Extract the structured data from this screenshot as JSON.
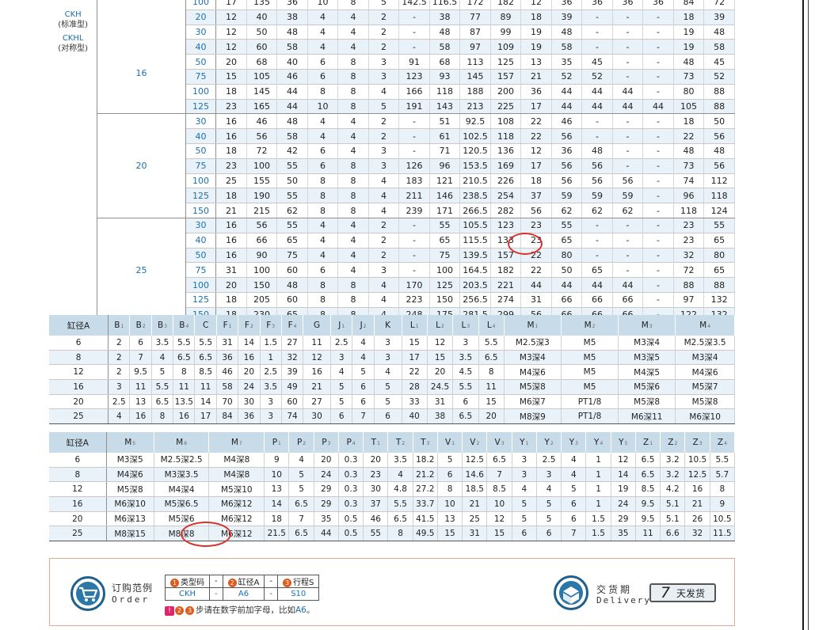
{
  "top_table": {
    "series_labels": [
      "CKH",
      "(标准型)",
      "CKHL",
      "(对称型)"
    ],
    "groups": [
      {
        "bore": "16",
        "rows": [
          [
            "100",
            "17",
            "135",
            "36",
            "10",
            "8",
            "5",
            "142.5",
            "116.5",
            "172",
            "182",
            "12",
            "36",
            "36",
            "36",
            "36",
            "84",
            "72"
          ],
          [
            "20",
            "12",
            "40",
            "38",
            "4",
            "4",
            "2",
            "-",
            "38",
            "77",
            "89",
            "18",
            "39",
            "-",
            "-",
            "-",
            "18",
            "39"
          ],
          [
            "30",
            "12",
            "50",
            "48",
            "4",
            "4",
            "2",
            "-",
            "48",
            "87",
            "99",
            "19",
            "48",
            "-",
            "-",
            "-",
            "19",
            "48"
          ],
          [
            "40",
            "12",
            "60",
            "58",
            "4",
            "4",
            "2",
            "-",
            "58",
            "97",
            "109",
            "19",
            "58",
            "-",
            "-",
            "-",
            "19",
            "58"
          ],
          [
            "50",
            "20",
            "68",
            "40",
            "6",
            "8",
            "3",
            "91",
            "68",
            "113",
            "125",
            "13",
            "35",
            "45",
            "-",
            "-",
            "48",
            "45"
          ],
          [
            "75",
            "15",
            "105",
            "46",
            "6",
            "8",
            "3",
            "123",
            "93",
            "145",
            "157",
            "21",
            "52",
            "52",
            "-",
            "-",
            "73",
            "52"
          ],
          [
            "100",
            "18",
            "145",
            "44",
            "8",
            "8",
            "4",
            "166",
            "118",
            "188",
            "200",
            "36",
            "44",
            "44",
            "44",
            "-",
            "80",
            "88"
          ],
          [
            "125",
            "23",
            "165",
            "44",
            "10",
            "8",
            "5",
            "191",
            "143",
            "213",
            "225",
            "17",
            "44",
            "44",
            "44",
            "44",
            "105",
            "88"
          ]
        ]
      },
      {
        "bore": "20",
        "rows": [
          [
            "30",
            "16",
            "46",
            "48",
            "4",
            "4",
            "2",
            "-",
            "51",
            "92.5",
            "108",
            "22",
            "46",
            "-",
            "-",
            "-",
            "18",
            "50"
          ],
          [
            "40",
            "16",
            "56",
            "58",
            "4",
            "4",
            "2",
            "-",
            "61",
            "102.5",
            "118",
            "22",
            "56",
            "-",
            "-",
            "-",
            "22",
            "56"
          ],
          [
            "50",
            "18",
            "72",
            "42",
            "6",
            "4",
            "3",
            "-",
            "71",
            "120.5",
            "136",
            "12",
            "36",
            "48",
            "-",
            "-",
            "48",
            "48"
          ],
          [
            "75",
            "23",
            "100",
            "55",
            "6",
            "8",
            "3",
            "126",
            "96",
            "153.5",
            "169",
            "17",
            "56",
            "56",
            "-",
            "-",
            "73",
            "56"
          ],
          [
            "100",
            "25",
            "155",
            "50",
            "8",
            "8",
            "4",
            "183",
            "121",
            "210.5",
            "226",
            "18",
            "56",
            "56",
            "56",
            "-",
            "74",
            "112"
          ],
          [
            "125",
            "18",
            "190",
            "55",
            "8",
            "8",
            "4",
            "211",
            "146",
            "238.5",
            "254",
            "37",
            "59",
            "59",
            "59",
            "-",
            "96",
            "118"
          ],
          [
            "150",
            "21",
            "215",
            "62",
            "8",
            "8",
            "4",
            "239",
            "171",
            "266.5",
            "282",
            "56",
            "62",
            "62",
            "62",
            "-",
            "118",
            "124"
          ]
        ]
      },
      {
        "bore": "25",
        "rows": [
          [
            "30",
            "16",
            "56",
            "55",
            "4",
            "4",
            "2",
            "-",
            "55",
            "105.5",
            "123",
            "23",
            "55",
            "-",
            "-",
            "-",
            "23",
            "55"
          ],
          [
            "40",
            "16",
            "66",
            "65",
            "4",
            "4",
            "2",
            "-",
            "65",
            "115.5",
            "133",
            "23",
            "65",
            "-",
            "-",
            "-",
            "23",
            "65"
          ],
          [
            "50",
            "16",
            "90",
            "75",
            "4",
            "4",
            "2",
            "-",
            "75",
            "139.5",
            "157",
            "22",
            "80",
            "-",
            "-",
            "-",
            "32",
            "80"
          ],
          [
            "75",
            "31",
            "100",
            "60",
            "6",
            "4",
            "3",
            "-",
            "100",
            "164.5",
            "182",
            "22",
            "50",
            "65",
            "-",
            "-",
            "72",
            "65"
          ],
          [
            "100",
            "20",
            "150",
            "48",
            "8",
            "8",
            "4",
            "170",
            "125",
            "203.5",
            "221",
            "44",
            "44",
            "44",
            "44",
            "-",
            "88",
            "88"
          ],
          [
            "125",
            "18",
            "205",
            "60",
            "8",
            "8",
            "4",
            "223",
            "150",
            "256.5",
            "274",
            "31",
            "66",
            "66",
            "66",
            "-",
            "97",
            "132"
          ],
          [
            "150",
            "18",
            "230",
            "65",
            "8",
            "8",
            "4",
            "248",
            "175",
            "281.5",
            "299",
            "56",
            "66",
            "66",
            "66",
            "-",
            "122",
            "132"
          ]
        ]
      }
    ]
  },
  "spec1": {
    "headers": [
      [
        "缸径A",
        ""
      ],
      [
        "B",
        "1"
      ],
      [
        "B",
        "2"
      ],
      [
        "B",
        "3"
      ],
      [
        "B",
        "4"
      ],
      [
        "C",
        ""
      ],
      [
        "F",
        "1"
      ],
      [
        "F",
        "2"
      ],
      [
        "F",
        "3"
      ],
      [
        "F",
        "4"
      ],
      [
        "G",
        ""
      ],
      [
        "J",
        "1"
      ],
      [
        "J",
        "2"
      ],
      [
        "K",
        ""
      ],
      [
        "L",
        "1"
      ],
      [
        "L",
        "2"
      ],
      [
        "L",
        "3"
      ],
      [
        "L",
        "4"
      ],
      [
        "M",
        "1"
      ],
      [
        "M",
        "2"
      ],
      [
        "M",
        "3"
      ],
      [
        "M",
        "4"
      ]
    ],
    "rows": [
      [
        "6",
        "2",
        "6",
        "3.5",
        "5.5",
        "5.5",
        "31",
        "14",
        "1.5",
        "27",
        "11",
        "2.5",
        "4",
        "3",
        "15",
        "12",
        "3",
        "5.5",
        "M2.5深3",
        "M5",
        "M3深4",
        "M2.5深3.5"
      ],
      [
        "8",
        "2",
        "7",
        "4",
        "6.5",
        "6.5",
        "36",
        "16",
        "1",
        "32",
        "12",
        "3",
        "4",
        "3",
        "17",
        "15",
        "3.5",
        "6.5",
        "M3深4",
        "M5",
        "M3深5",
        "M3深4"
      ],
      [
        "12",
        "2",
        "9.5",
        "5",
        "8",
        "8.5",
        "46",
        "20",
        "2.5",
        "39",
        "16",
        "4",
        "5",
        "4",
        "22",
        "20",
        "4.5",
        "8",
        "M4深6",
        "M5",
        "M4深5",
        "M4深6"
      ],
      [
        "16",
        "3",
        "11",
        "5.5",
        "11",
        "11",
        "58",
        "24",
        "3.5",
        "49",
        "21",
        "5",
        "6",
        "5",
        "28",
        "24.5",
        "5.5",
        "11",
        "M5深8",
        "M5",
        "M5深6",
        "M5深7"
      ],
      [
        "20",
        "2.5",
        "13",
        "6.5",
        "13.5",
        "14",
        "70",
        "30",
        "3",
        "60",
        "27",
        "5",
        "6",
        "5",
        "33",
        "31",
        "6",
        "15",
        "M6深7",
        "PT1/8",
        "M5深8",
        "M5深8"
      ],
      [
        "25",
        "4",
        "16",
        "8",
        "16",
        "17",
        "84",
        "36",
        "3",
        "74",
        "30",
        "6",
        "7",
        "6",
        "40",
        "38",
        "6.5",
        "20",
        "M8深9",
        "PT1/8",
        "M6深11",
        "M6深10"
      ]
    ]
  },
  "spec2": {
    "headers": [
      [
        "缸径A",
        ""
      ],
      [
        "M",
        "5"
      ],
      [
        "M",
        "6"
      ],
      [
        "M",
        "7"
      ],
      [
        "P",
        "1"
      ],
      [
        "P",
        "2"
      ],
      [
        "P",
        "3"
      ],
      [
        "P",
        "4"
      ],
      [
        "T",
        "1"
      ],
      [
        "T",
        "2"
      ],
      [
        "T",
        "3"
      ],
      [
        "V",
        "1"
      ],
      [
        "V",
        "2"
      ],
      [
        "V",
        "3"
      ],
      [
        "Y",
        "1"
      ],
      [
        "Y",
        "2"
      ],
      [
        "Y",
        "3"
      ],
      [
        "Y",
        "4"
      ],
      [
        "Y",
        "5"
      ],
      [
        "Z",
        "1"
      ],
      [
        "Z",
        "2"
      ],
      [
        "Z",
        "3"
      ],
      [
        "Z",
        "4"
      ]
    ],
    "rows": [
      [
        "6",
        "M3深5",
        "M2.5深2.5",
        "M4深8",
        "9",
        "4",
        "20",
        "0.3",
        "20",
        "3.5",
        "18.2",
        "5",
        "12.5",
        "6.5",
        "3",
        "2.5",
        "4",
        "1",
        "12",
        "6.5",
        "3.2",
        "10.5",
        "5.5"
      ],
      [
        "8",
        "M4深6",
        "M3深3.5",
        "M4深8",
        "10",
        "5",
        "24",
        "0.3",
        "23",
        "4",
        "21.2",
        "6",
        "14.6",
        "7",
        "3",
        "3",
        "4",
        "1",
        "14",
        "6.5",
        "3.2",
        "12.5",
        "5.7"
      ],
      [
        "12",
        "M5深8",
        "M4深4",
        "M5深10",
        "13",
        "5",
        "29",
        "0.3",
        "30",
        "4.8",
        "27.2",
        "8",
        "18.5",
        "8.5",
        "4",
        "4",
        "5",
        "1",
        "19",
        "8.5",
        "4.2",
        "16",
        "8"
      ],
      [
        "16",
        "M6深10",
        "M5深6.5",
        "M6深12",
        "14",
        "6.5",
        "29",
        "0.3",
        "37",
        "5.5",
        "33.7",
        "10",
        "21",
        "10",
        "5",
        "5",
        "6",
        "1",
        "24",
        "9.5",
        "5.1",
        "21",
        "9"
      ],
      [
        "20",
        "M6深13",
        "M5深6",
        "M6深12",
        "18",
        "7",
        "35",
        "0.5",
        "46",
        "6.5",
        "41.5",
        "13",
        "25",
        "12",
        "5",
        "5",
        "6",
        "1.5",
        "29",
        "9.5",
        "5.1",
        "26",
        "10.5"
      ],
      [
        "25",
        "M8深15",
        "M8深8",
        "M6深12",
        "21.5",
        "6.5",
        "44",
        "0.5",
        "55",
        "8",
        "49.5",
        "15",
        "31",
        "15",
        "6",
        "6",
        "7",
        "1.5",
        "35",
        "11",
        "6.6",
        "32",
        "11.5"
      ]
    ]
  },
  "order": {
    "title_cn": "订购范例",
    "title_en": "Order",
    "header_cells": [
      {
        "num": "1",
        "text": "类型码"
      },
      {
        "num": "",
        "text": "-"
      },
      {
        "num": "2",
        "text": "缸径A"
      },
      {
        "num": "",
        "text": "-"
      },
      {
        "num": "3",
        "text": "行程S"
      }
    ],
    "value_cells": [
      "CKH",
      "-",
      "A6",
      "-",
      "S10"
    ],
    "note_prefix_nums": [
      "2",
      "3"
    ],
    "note_text": "步请在数字前加字母，比如",
    "note_example": "A6",
    "note_end": "。",
    "delivery_cn": "交货期",
    "delivery_en": "Delivery",
    "days_num": "7",
    "days_text": "天发货"
  }
}
